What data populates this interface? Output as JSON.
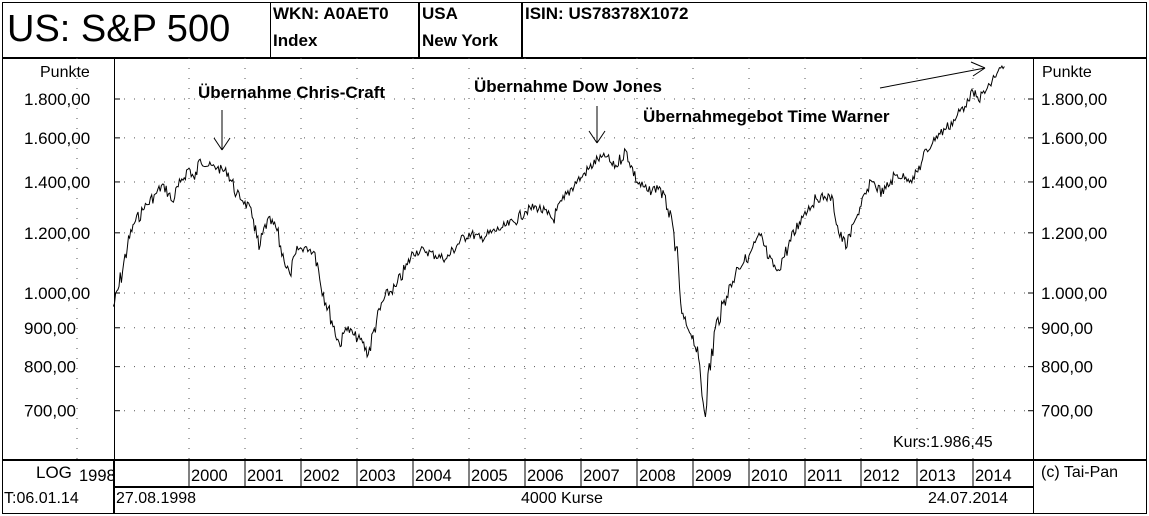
{
  "header": {
    "title": "US: S&P 500",
    "wkn_label": "WKN: A0AET0",
    "type": "Index",
    "country": "USA",
    "exchange": "New York",
    "isin_label": "ISIN: US78378X1072"
  },
  "footer": {
    "scale": "LOG",
    "timestamp": "T:06.01.14",
    "start_date": "27.08.1998",
    "count": "4000 Kurse",
    "end_date": "24.07.2014",
    "copyright": "(c) Tai-Pan"
  },
  "chart_data": {
    "type": "line",
    "yscale": "log",
    "ylabel_left": "Punkte",
    "ylabel_right": "Punkte",
    "yticks": [
      700,
      800,
      900,
      1000,
      1200,
      1400,
      1600,
      1800
    ],
    "ytick_labels": [
      "700,00",
      "800,00",
      "900,00",
      "1.000,00",
      "1.200,00",
      "1.400,00",
      "1.600,00",
      "1.800,00"
    ],
    "xticks": [
      "1998",
      "2000",
      "2001",
      "2002",
      "2003",
      "2004",
      "2005",
      "2006",
      "2007",
      "2008",
      "2009",
      "2010",
      "2011",
      "2012",
      "2013",
      "2014"
    ],
    "grid": true,
    "last_price_label": "Kurs:1.986,45",
    "series": [
      {
        "x": [
          1998.65,
          1998.75,
          1998.9,
          1999.0,
          1999.2,
          1999.4,
          1999.55,
          1999.7,
          1999.85,
          2000.0,
          2000.1,
          2000.2,
          2000.35,
          2000.5,
          2000.7,
          2000.85,
          2001.0,
          2001.15,
          2001.25,
          2001.4,
          2001.55,
          2001.7,
          2001.8,
          2001.95,
          2002.1,
          2002.25,
          2002.4,
          2002.55,
          2002.7,
          2002.8,
          2002.95,
          2003.1,
          2003.2,
          2003.35,
          2003.5,
          2003.7,
          2003.9,
          2004.0,
          2004.2,
          2004.4,
          2004.6,
          2004.8,
          2005.0,
          2005.2,
          2005.4,
          2005.6,
          2005.8,
          2006.0,
          2006.2,
          2006.4,
          2006.5,
          2006.7,
          2006.9,
          2007.0,
          2007.15,
          2007.3,
          2007.45,
          2007.6,
          2007.8,
          2007.9,
          2008.0,
          2008.2,
          2008.4,
          2008.55,
          2008.7,
          2008.8,
          2008.9,
          2009.0,
          2009.1,
          2009.2,
          2009.4,
          2009.6,
          2009.8,
          2010.0,
          2010.2,
          2010.35,
          2010.5,
          2010.7,
          2010.9,
          2011.0,
          2011.2,
          2011.35,
          2011.5,
          2011.6,
          2011.75,
          2011.9,
          2012.0,
          2012.2,
          2012.4,
          2012.6,
          2012.8,
          2012.95,
          2013.1,
          2013.3,
          2013.5,
          2013.7,
          2013.9,
          2014.0,
          2014.1,
          2014.3,
          2014.45,
          2014.56
        ],
        "y": [
          960,
          1020,
          1150,
          1230,
          1290,
          1350,
          1390,
          1320,
          1400,
          1460,
          1410,
          1500,
          1470,
          1460,
          1440,
          1350,
          1320,
          1250,
          1140,
          1250,
          1220,
          1100,
          1060,
          1140,
          1150,
          1130,
          1000,
          920,
          850,
          900,
          880,
          860,
          830,
          920,
          990,
          1020,
          1090,
          1130,
          1140,
          1120,
          1110,
          1160,
          1200,
          1180,
          1200,
          1220,
          1240,
          1280,
          1300,
          1270,
          1250,
          1330,
          1400,
          1420,
          1460,
          1500,
          1510,
          1460,
          1540,
          1470,
          1400,
          1360,
          1380,
          1290,
          1150,
          940,
          900,
          880,
          820,
          700,
          900,
          990,
          1080,
          1120,
          1190,
          1110,
          1070,
          1150,
          1240,
          1280,
          1330,
          1340,
          1330,
          1200,
          1150,
          1250,
          1300,
          1400,
          1350,
          1430,
          1420,
          1410,
          1500,
          1600,
          1640,
          1700,
          1800,
          1840,
          1790,
          1880,
          1960,
          1986
        ]
      }
    ],
    "annotations": [
      {
        "text": "Übernahme Chris-Craft",
        "x": 2000.1
      },
      {
        "text": "Übernahme Dow Jones",
        "x": 2007.0
      },
      {
        "text": "Übernahmegebot Time Warner",
        "x": 2014.5
      }
    ]
  }
}
